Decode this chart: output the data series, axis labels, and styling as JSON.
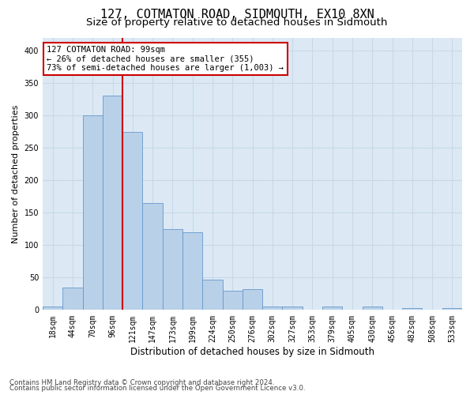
{
  "title": "127, COTMATON ROAD, SIDMOUTH, EX10 8XN",
  "subtitle": "Size of property relative to detached houses in Sidmouth",
  "xlabel": "Distribution of detached houses by size in Sidmouth",
  "ylabel": "Number of detached properties",
  "categories": [
    "18sqm",
    "44sqm",
    "70sqm",
    "96sqm",
    "121sqm",
    "147sqm",
    "173sqm",
    "199sqm",
    "224sqm",
    "250sqm",
    "276sqm",
    "302sqm",
    "327sqm",
    "353sqm",
    "379sqm",
    "405sqm",
    "430sqm",
    "456sqm",
    "482sqm",
    "508sqm",
    "533sqm"
  ],
  "values": [
    5,
    35,
    300,
    330,
    275,
    165,
    125,
    120,
    47,
    30,
    32,
    5,
    5,
    0,
    5,
    0,
    5,
    0,
    3,
    0,
    3
  ],
  "bar_color": "#b8d0e8",
  "bar_edge_color": "#6699cc",
  "highlight_line_index": 3.5,
  "highlight_color": "#cc0000",
  "annotation_text": "127 COTMATON ROAD: 99sqm\n← 26% of detached houses are smaller (355)\n73% of semi-detached houses are larger (1,003) →",
  "annotation_box_color": "#ffffff",
  "annotation_box_edge_color": "#cc0000",
  "ylim": [
    0,
    420
  ],
  "yticks": [
    0,
    50,
    100,
    150,
    200,
    250,
    300,
    350,
    400
  ],
  "grid_color": "#c8d8e8",
  "plot_background": "#dce9f5",
  "footer1": "Contains HM Land Registry data © Crown copyright and database right 2024.",
  "footer2": "Contains public sector information licensed under the Open Government Licence v3.0.",
  "title_fontsize": 11,
  "subtitle_fontsize": 9.5,
  "tick_fontsize": 7,
  "ylabel_fontsize": 8,
  "xlabel_fontsize": 8.5,
  "annotation_fontsize": 7.5
}
